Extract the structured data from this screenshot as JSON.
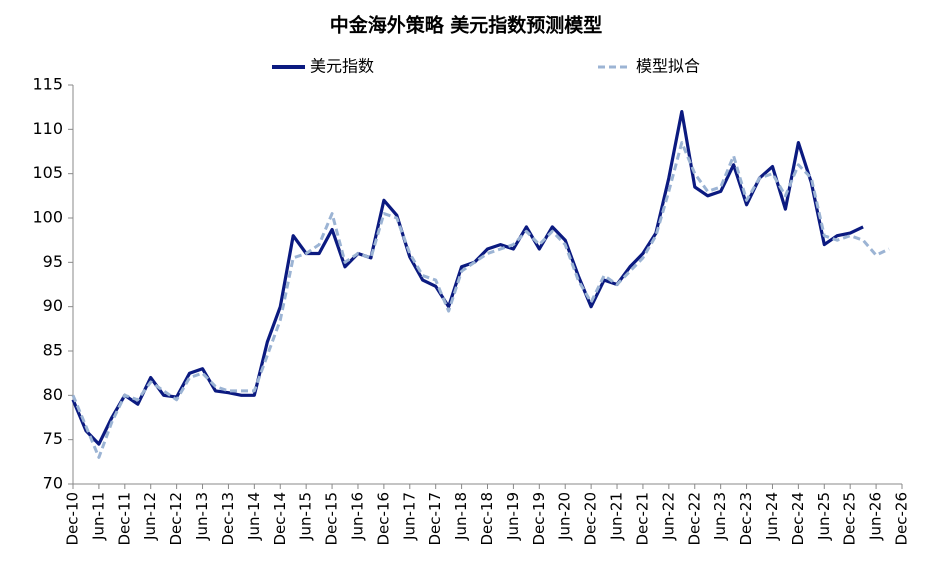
{
  "chart_data": {
    "type": "line",
    "title": "中金海外策略 美元指数预测模型",
    "categories": [
      "Dec-10",
      null,
      "Jun-11",
      null,
      "Dec-11",
      null,
      "Jun-12",
      null,
      "Dec-12",
      null,
      "Jun-13",
      null,
      "Dec-13",
      null,
      "Jun-14",
      null,
      "Dec-14",
      null,
      "Jun-15",
      null,
      "Dec-15",
      null,
      "Jun-16",
      null,
      "Dec-16",
      null,
      "Jun-17",
      null,
      "Dec-17",
      null,
      "Jun-18",
      null,
      "Dec-18",
      null,
      "Jun-19",
      null,
      "Dec-19",
      null,
      "Jun-20",
      null,
      "Dec-20",
      null,
      "Jun-21",
      null,
      "Dec-21",
      null,
      "Jun-22",
      null,
      "Dec-22",
      null,
      "Jun-23",
      null,
      "Dec-23",
      null,
      "Jun-24",
      null,
      "Dec-24",
      null,
      "Jun-25",
      null,
      "Dec-25",
      null,
      "Jun-26",
      null,
      "Dec-26"
    ],
    "series": [
      {
        "name": "美元指数",
        "color": "#0b1a80",
        "dash": false,
        "values": [
          79.5,
          76,
          74.5,
          77.5,
          80,
          79,
          82,
          80,
          79.8,
          82.5,
          83,
          80.5,
          80.3,
          80,
          80,
          86,
          90,
          98,
          96,
          96,
          98.7,
          94.5,
          96,
          95.5,
          102,
          100.3,
          95.6,
          93,
          92.3,
          90,
          94.5,
          95,
          96.5,
          97,
          96.5,
          99,
          96.5,
          99,
          97.5,
          93.5,
          90,
          93,
          92.5,
          94.5,
          96,
          98.3,
          104.5,
          112,
          103.5,
          102.5,
          103,
          106,
          101.5,
          104.5,
          105.8,
          101,
          108.5,
          104,
          97,
          98,
          98.3,
          99,
          null,
          null,
          null
        ]
      },
      {
        "name": "模型拟合",
        "color": "#9cb4d4",
        "dash": true,
        "values": [
          80,
          76.5,
          73,
          77,
          80,
          79.5,
          81.5,
          80.5,
          79.5,
          82,
          82.5,
          81,
          80.5,
          80.5,
          80.5,
          84.5,
          88.5,
          95.5,
          96,
          97,
          100.5,
          95,
          96,
          95.5,
          100.5,
          100,
          96,
          93.5,
          93,
          89.5,
          94,
          95,
          96,
          96.5,
          97,
          98.5,
          97,
          98.5,
          97,
          93,
          90.5,
          93.5,
          92.5,
          94,
          95.5,
          98,
          103,
          108.5,
          105,
          103,
          103.5,
          107,
          102,
          104.5,
          105,
          102.5,
          106,
          104.5,
          98,
          97.5,
          98,
          97.5,
          95.8,
          96.5,
          null
        ]
      }
    ],
    "ylim": [
      70,
      115
    ],
    "yticks": [
      70,
      75,
      80,
      85,
      90,
      95,
      100,
      105,
      110,
      115
    ]
  }
}
